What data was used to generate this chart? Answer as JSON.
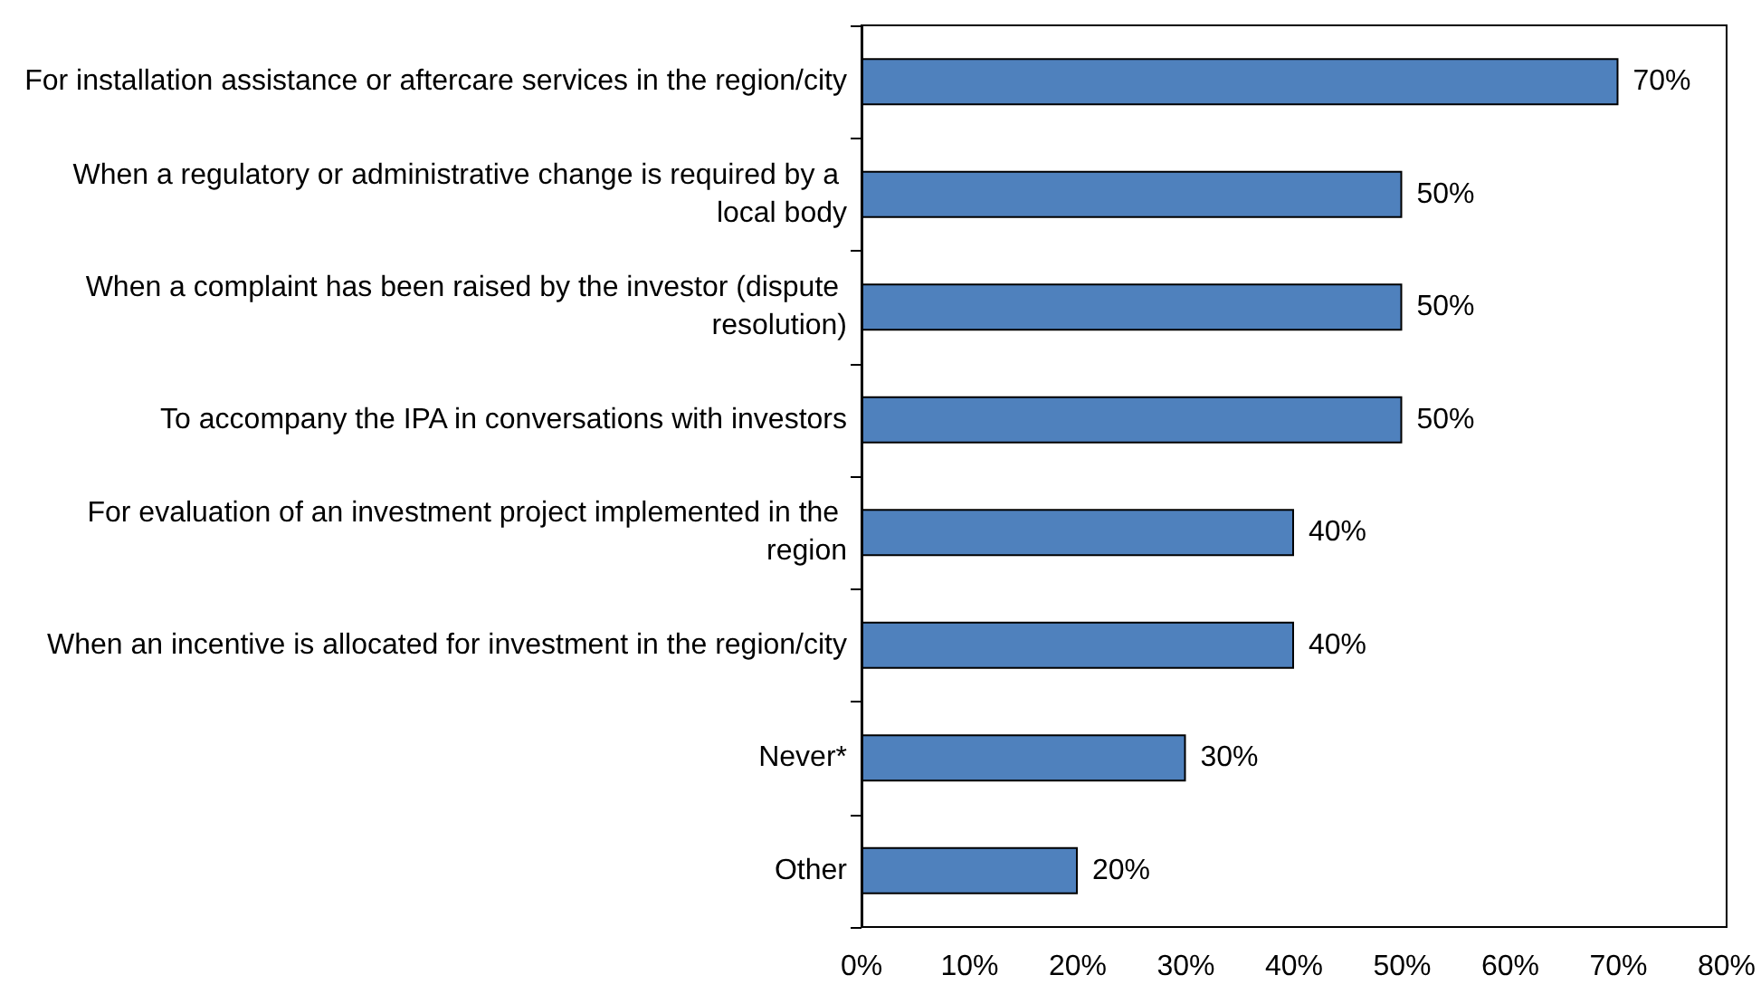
{
  "chart_data": {
    "type": "bar",
    "orientation": "horizontal",
    "categories": [
      "For installation assistance or aftercare services in the region/city",
      "When a regulatory or administrative change is required by a local body",
      "When a complaint has been raised by the investor (dispute resolution)",
      "To accompany the IPA in conversations with investors",
      "For evaluation of an investment project implemented in the region",
      "When an incentive is allocated for investment in the region/city",
      "Never*",
      "Other"
    ],
    "values": [
      70,
      50,
      50,
      50,
      40,
      40,
      30,
      20
    ],
    "value_labels": [
      "70%",
      "50%",
      "50%",
      "50%",
      "40%",
      "40%",
      "30%",
      "20%"
    ],
    "color": "#4f81bd",
    "xlim": [
      0,
      80
    ],
    "xticks": [
      {
        "value": 0,
        "label": "0%"
      },
      {
        "value": 10,
        "label": "10%"
      },
      {
        "value": 20,
        "label": "20%"
      },
      {
        "value": 30,
        "label": "30%"
      },
      {
        "value": 40,
        "label": "40%"
      },
      {
        "value": 50,
        "label": "50%"
      },
      {
        "value": 60,
        "label": "60%"
      },
      {
        "value": 70,
        "label": "70%"
      },
      {
        "value": 80,
        "label": "80%"
      }
    ],
    "grid": false
  }
}
